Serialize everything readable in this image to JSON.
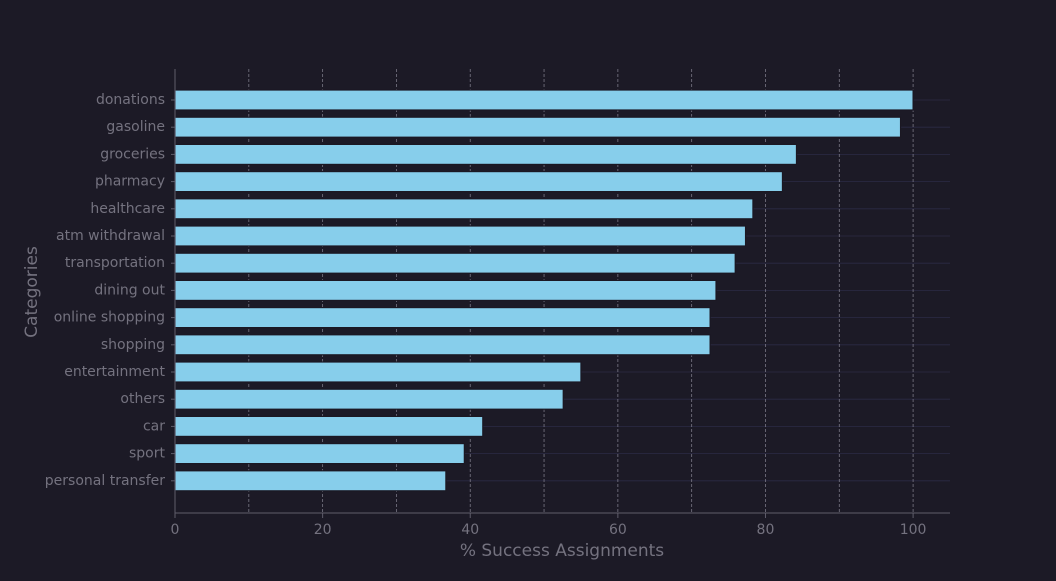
{
  "chart_data": {
    "type": "bar",
    "orientation": "horizontal",
    "categories": [
      "donations",
      "gasoline",
      "groceries",
      "pharmacy",
      "healthcare",
      "atm withdrawal",
      "transportation",
      "dining out",
      "online shopping",
      "shopping",
      "entertainment",
      "others",
      "car",
      "sport",
      "personal transfer"
    ],
    "values": [
      100,
      98.3,
      84.2,
      82.3,
      78.3,
      77.3,
      75.9,
      73.3,
      72.5,
      72.5,
      55.0,
      52.6,
      41.7,
      39.2,
      36.7
    ],
    "title": "",
    "xlabel": "% Success Assignments",
    "ylabel": "Categories",
    "xlim": [
      0,
      105
    ],
    "xticks": [
      0,
      20,
      40,
      60,
      80,
      100
    ],
    "grid": true,
    "colors": {
      "background": "#1c1a26",
      "bar": "#87ceeb",
      "text": "#74727f"
    }
  }
}
